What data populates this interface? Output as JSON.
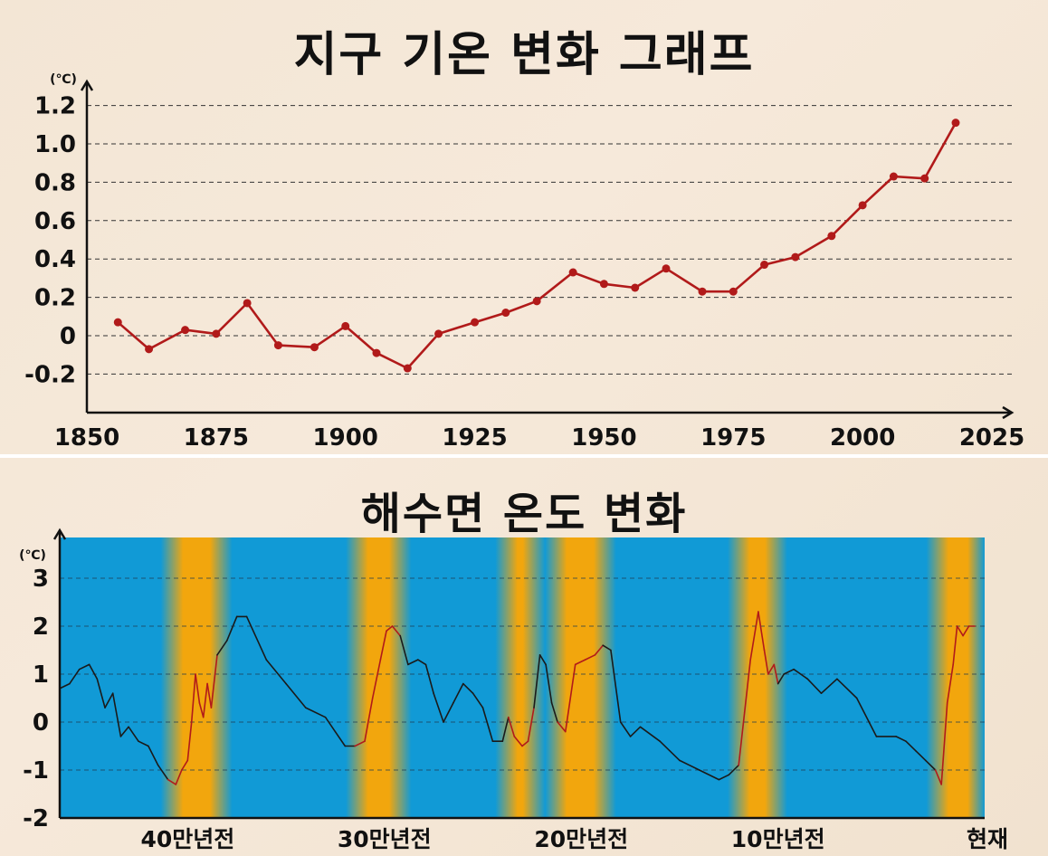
{
  "chart_data": [
    {
      "type": "line",
      "title": "지구 기온 변화 그래프",
      "unit": "(℃)",
      "xlim": [
        1850,
        2025
      ],
      "ylim": [
        -0.4,
        1.3
      ],
      "x_ticks": [
        "1850",
        "1875",
        "1900",
        "1925",
        "1950",
        "1975",
        "2000",
        "2025"
      ],
      "y_ticks": [
        "1.2",
        "1.0",
        "0.8",
        "0.6",
        "0.4",
        "0.2",
        "0",
        "-0.2"
      ],
      "grid": "horizontal dashed",
      "line_color": "#b11a1a",
      "series": [
        {
          "x": [
            1856,
            1862,
            1869,
            1875,
            1881,
            1887,
            1894,
            1900,
            1906,
            1912,
            1918,
            1925,
            1931,
            1937,
            1944,
            1950,
            1956,
            1962,
            1969,
            1975,
            1981,
            1987,
            1994,
            2000,
            2006,
            2012,
            2018
          ],
          "values": [
            0.07,
            -0.07,
            0.03,
            0.01,
            0.17,
            -0.05,
            -0.06,
            0.05,
            -0.09,
            -0.17,
            0.01,
            0.07,
            0.12,
            0.18,
            0.33,
            0.27,
            0.25,
            0.35,
            0.23,
            0.23,
            0.37,
            0.41,
            0.52,
            0.68,
            0.83,
            0.82,
            1.11
          ]
        }
      ]
    },
    {
      "type": "line",
      "title": "해수면 온도 변화",
      "unit": "(℃)",
      "ylim": [
        -2,
        3.8
      ],
      "y_ticks": [
        "3",
        "2",
        "1",
        "0",
        "-1",
        "-2"
      ],
      "x_labels": [
        "40만년전",
        "30만년전",
        "20만년전",
        "10만년전",
        "현재"
      ],
      "x_label_positions": [
        40,
        30,
        20,
        10,
        0
      ],
      "xlim": [
        46.5,
        -0.5
      ],
      "grid": "horizontal dashed",
      "background": "blue with yellow bands at warm periods",
      "cold_color": "#119ad6",
      "warm_color": "#f2a60d",
      "warm_line_color": "#b11a1a",
      "cold_line_color": "#1a1a1a",
      "warm_bands": [
        [
          40.8,
          38.3
        ],
        [
          31.4,
          29.2
        ],
        [
          23.8,
          22.4
        ],
        [
          21.3,
          18.8
        ],
        [
          12.0,
          10.1
        ],
        [
          1.9,
          -0.2
        ]
      ],
      "series": [
        {
          "x": [
            46.5,
            46.0,
            45.5,
            45.0,
            44.6,
            44.2,
            43.8,
            43.4,
            43.0,
            42.5,
            42.0,
            41.5,
            41.0,
            40.6,
            40.3,
            40.0,
            39.8,
            39.6,
            39.4,
            39.2,
            39.0,
            38.8,
            38.5,
            38.0,
            37.5,
            37.0,
            36.0,
            35.0,
            34.0,
            33.0,
            32.5,
            32.0,
            31.5,
            31.0,
            30.6,
            30.2,
            29.9,
            29.6,
            29.2,
            28.8,
            28.3,
            27.9,
            27.5,
            27.0,
            26.5,
            26.0,
            25.5,
            25.0,
            24.5,
            24.0,
            23.7,
            23.4,
            23.0,
            22.7,
            22.4,
            22.1,
            21.8,
            21.5,
            21.2,
            20.8,
            20.3,
            19.8,
            19.3,
            18.9,
            18.5,
            18.0,
            17.5,
            17.0,
            16.0,
            15.0,
            14.0,
            13.0,
            12.5,
            12.0,
            11.7,
            11.4,
            11.0,
            10.7,
            10.5,
            10.2,
            10.0,
            9.7,
            9.2,
            8.5,
            7.8,
            7.0,
            6.0,
            5.0,
            4.0,
            3.5,
            3.0,
            2.5,
            2.0,
            1.7,
            1.4,
            1.1,
            0.9,
            0.6,
            0.3,
            0.0
          ],
          "values": [
            0.7,
            0.8,
            1.1,
            1.2,
            0.9,
            0.3,
            0.6,
            -0.3,
            -0.1,
            -0.4,
            -0.5,
            -0.9,
            -1.2,
            -1.3,
            -1.0,
            -0.8,
            0.0,
            1.0,
            0.4,
            0.1,
            0.8,
            0.3,
            1.4,
            1.7,
            2.2,
            2.2,
            1.3,
            0.8,
            0.3,
            0.1,
            -0.2,
            -0.5,
            -0.5,
            -0.4,
            0.5,
            1.3,
            1.9,
            2.0,
            1.8,
            1.2,
            1.3,
            1.2,
            0.6,
            0.0,
            0.4,
            0.8,
            0.6,
            0.3,
            -0.4,
            -0.4,
            0.1,
            -0.3,
            -0.5,
            -0.4,
            0.3,
            1.4,
            1.2,
            0.4,
            0.0,
            -0.2,
            1.2,
            1.3,
            1.4,
            1.6,
            1.5,
            0.0,
            -0.3,
            -0.1,
            -0.4,
            -0.8,
            -1.0,
            -1.2,
            -1.1,
            -0.9,
            0.2,
            1.3,
            2.3,
            1.5,
            1.0,
            1.2,
            0.8,
            1.0,
            1.1,
            0.9,
            0.6,
            0.9,
            0.5,
            -0.3,
            -0.3,
            -0.4,
            -0.6,
            -0.8,
            -1.0,
            -1.3,
            0.4,
            1.2,
            2.0,
            1.8,
            2.0,
            2.0
          ]
        }
      ]
    }
  ]
}
